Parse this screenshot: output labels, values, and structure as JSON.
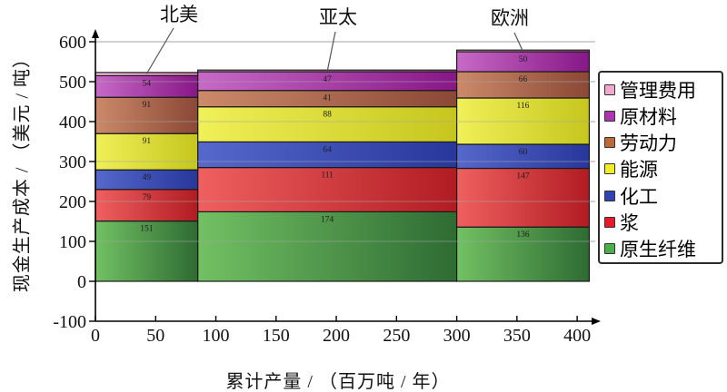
{
  "chart_data": {
    "type": "bar",
    "variant": "variable-width-stacked-cost-curve",
    "title": "",
    "xlabel": "累计产量 / （百万吨 / 年）",
    "ylabel": "现金生产成本 / （美元 / 吨）",
    "xlim": [
      0,
      415
    ],
    "ylim": [
      -100,
      600
    ],
    "x_ticks": [
      0,
      50,
      100,
      150,
      200,
      250,
      300,
      350,
      400
    ],
    "y_ticks": [
      600,
      500,
      400,
      300,
      200,
      100,
      0,
      -100
    ],
    "grid": true,
    "gridline_color": "#a6a6a6",
    "legend_position": "right",
    "stack_order_bottom_to_top": [
      "原生纤维",
      "浆",
      "化工",
      "能源",
      "劳动力",
      "原材料",
      "管理费用"
    ],
    "series": [
      {
        "name": "原生纤维",
        "color_left": "#72c163",
        "color_right": "#2e6b33",
        "labeled": true
      },
      {
        "name": "浆",
        "color_left": "#f06060",
        "color_right": "#b01c22",
        "labeled": true
      },
      {
        "name": "化工",
        "color_left": "#5668cc",
        "color_right": "#27379c",
        "labeled": true
      },
      {
        "name": "能源",
        "color_left": "#f0f058",
        "color_right": "#c6c61e",
        "labeled": true
      },
      {
        "name": "劳动力",
        "color_left": "#cc8a6a",
        "color_right": "#8a4836",
        "labeled": true
      },
      {
        "name": "原材料",
        "color_left": "#c76ac7",
        "color_right": "#871787",
        "labeled": true
      },
      {
        "name": "管理费用",
        "color_left": "#f5c0de",
        "color_right": "#d878b0",
        "labeled": false
      }
    ],
    "bars": [
      {
        "region": "北美",
        "x_start": 0,
        "x_end": 85,
        "values": [
          151,
          79,
          49,
          91,
          91,
          54,
          8
        ]
      },
      {
        "region": "亚太",
        "x_start": 85,
        "x_end": 300,
        "values": [
          174,
          111,
          64,
          88,
          41,
          47,
          4
        ]
      },
      {
        "region": "欧洲",
        "x_start": 300,
        "x_end": 410,
        "values": [
          136,
          147,
          60,
          116,
          66,
          50,
          4
        ]
      }
    ],
    "legend_items": [
      {
        "label": "管理费用",
        "color": "#f0a8cc"
      },
      {
        "label": "原材料",
        "color": "#ad35ad"
      },
      {
        "label": "劳动力",
        "color": "#bd6a3a"
      },
      {
        "label": "能源",
        "color": "#f0ec28"
      },
      {
        "label": "化工",
        "color": "#2f43b4"
      },
      {
        "label": "浆",
        "color": "#e8192c"
      },
      {
        "label": "原生纤维",
        "color": "#4aae4a"
      }
    ]
  }
}
